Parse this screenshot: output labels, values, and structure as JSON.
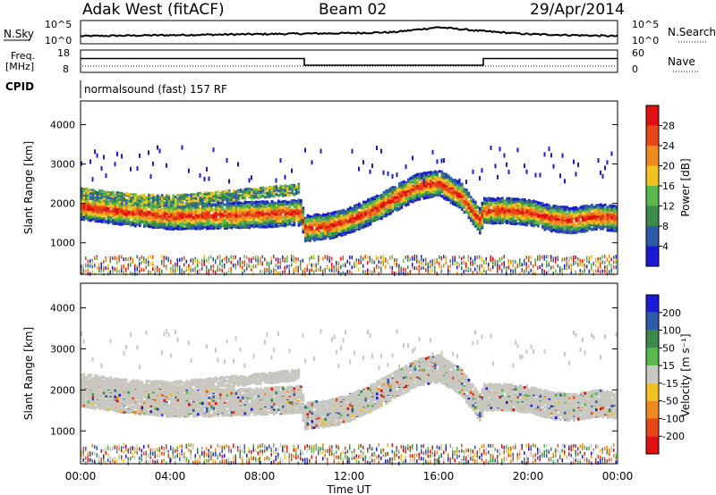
{
  "header": {
    "station": "Adak West (fitACF)",
    "beam": "Beam 02",
    "date": "29/Apr/2014"
  },
  "param_panels": {
    "nsky_label": "N.Sky",
    "nsky_ticks": [
      "10^5",
      "10^0"
    ],
    "nsearch_label": "N.Search",
    "nsearch_ticks": [
      "10^5",
      "10^0"
    ],
    "freq_label": "Freq.",
    "freq_unit": "[MHz]",
    "freq_ticks": [
      "18",
      "8"
    ],
    "nave_label": "Nave",
    "nave_ticks": [
      "60",
      "0"
    ],
    "cpid_label": "CPID",
    "cpid_text": "normalsound (fast) 157 RF"
  },
  "colors": {
    "power_scale": [
      "#1a1ad6",
      "#2e5aa8",
      "#3a8a4a",
      "#58b84a",
      "#f2c21e",
      "#f08a1e",
      "#e84818",
      "#e01010"
    ],
    "velocity_scale": [
      "#e01010",
      "#e84818",
      "#f08a1e",
      "#f2c21e",
      "#c8c8c0",
      "#58b84a",
      "#3a8a4a",
      "#2e5aa8",
      "#1a1ad6"
    ]
  },
  "chart_data": [
    {
      "type": "heatmap",
      "name": "power",
      "ylabel": "Slant Range [km]",
      "yticks": [
        "1000",
        "2000",
        "3000",
        "4000"
      ],
      "ylim": [
        200,
        4600
      ],
      "xlim": [
        0,
        24
      ],
      "colorbar_label": "Power [dB]",
      "colorbar_ticks": [
        "4",
        "8",
        "12",
        "16",
        "20",
        "24",
        "28"
      ],
      "features": [
        {
          "name": "main band",
          "t": [
            0,
            2,
            4,
            6,
            8,
            9.8,
            10,
            11,
            12,
            13,
            14,
            15,
            16,
            17,
            17.8,
            18,
            19,
            20,
            21,
            22,
            23,
            24
          ],
          "r": [
            1950,
            1800,
            1700,
            1720,
            1750,
            1800,
            1400,
            1450,
            1600,
            1850,
            2150,
            2450,
            2550,
            2200,
            1600,
            1850,
            1850,
            1800,
            1650,
            1600,
            1700,
            1650
          ]
        },
        {
          "name": "far band",
          "t": [
            0,
            2,
            4,
            6,
            8,
            9.8
          ],
          "r": [
            2300,
            2150,
            2100,
            2200,
            2300,
            2400
          ]
        }
      ]
    },
    {
      "type": "heatmap",
      "name": "velocity",
      "ylabel": "Slant Range [km]",
      "yticks": [
        "1000",
        "2000",
        "3000",
        "4000"
      ],
      "ylim": [
        200,
        4600
      ],
      "xlim": [
        0,
        24
      ],
      "colorbar_label": "Velocity [m s⁻¹]",
      "colorbar_ticks": [
        "200",
        "100",
        "50",
        "15",
        "-15",
        "-50",
        "-100",
        "-200"
      ],
      "xticks": [
        "00:00",
        "04:00",
        "08:00",
        "12:00",
        "16:00",
        "20:00",
        "00:00"
      ],
      "xlabel": "Time UT"
    }
  ],
  "nsky_profile": {
    "t": [
      0,
      4,
      8,
      12,
      14,
      16,
      18,
      20,
      24
    ],
    "v": [
      0.3,
      0.35,
      0.4,
      0.45,
      0.5,
      0.75,
      0.55,
      0.4,
      0.3
    ]
  },
  "freq_profile": {
    "t": [
      0,
      10,
      10,
      18,
      18,
      24
    ],
    "v": [
      13,
      13,
      8,
      8,
      13,
      13
    ]
  }
}
